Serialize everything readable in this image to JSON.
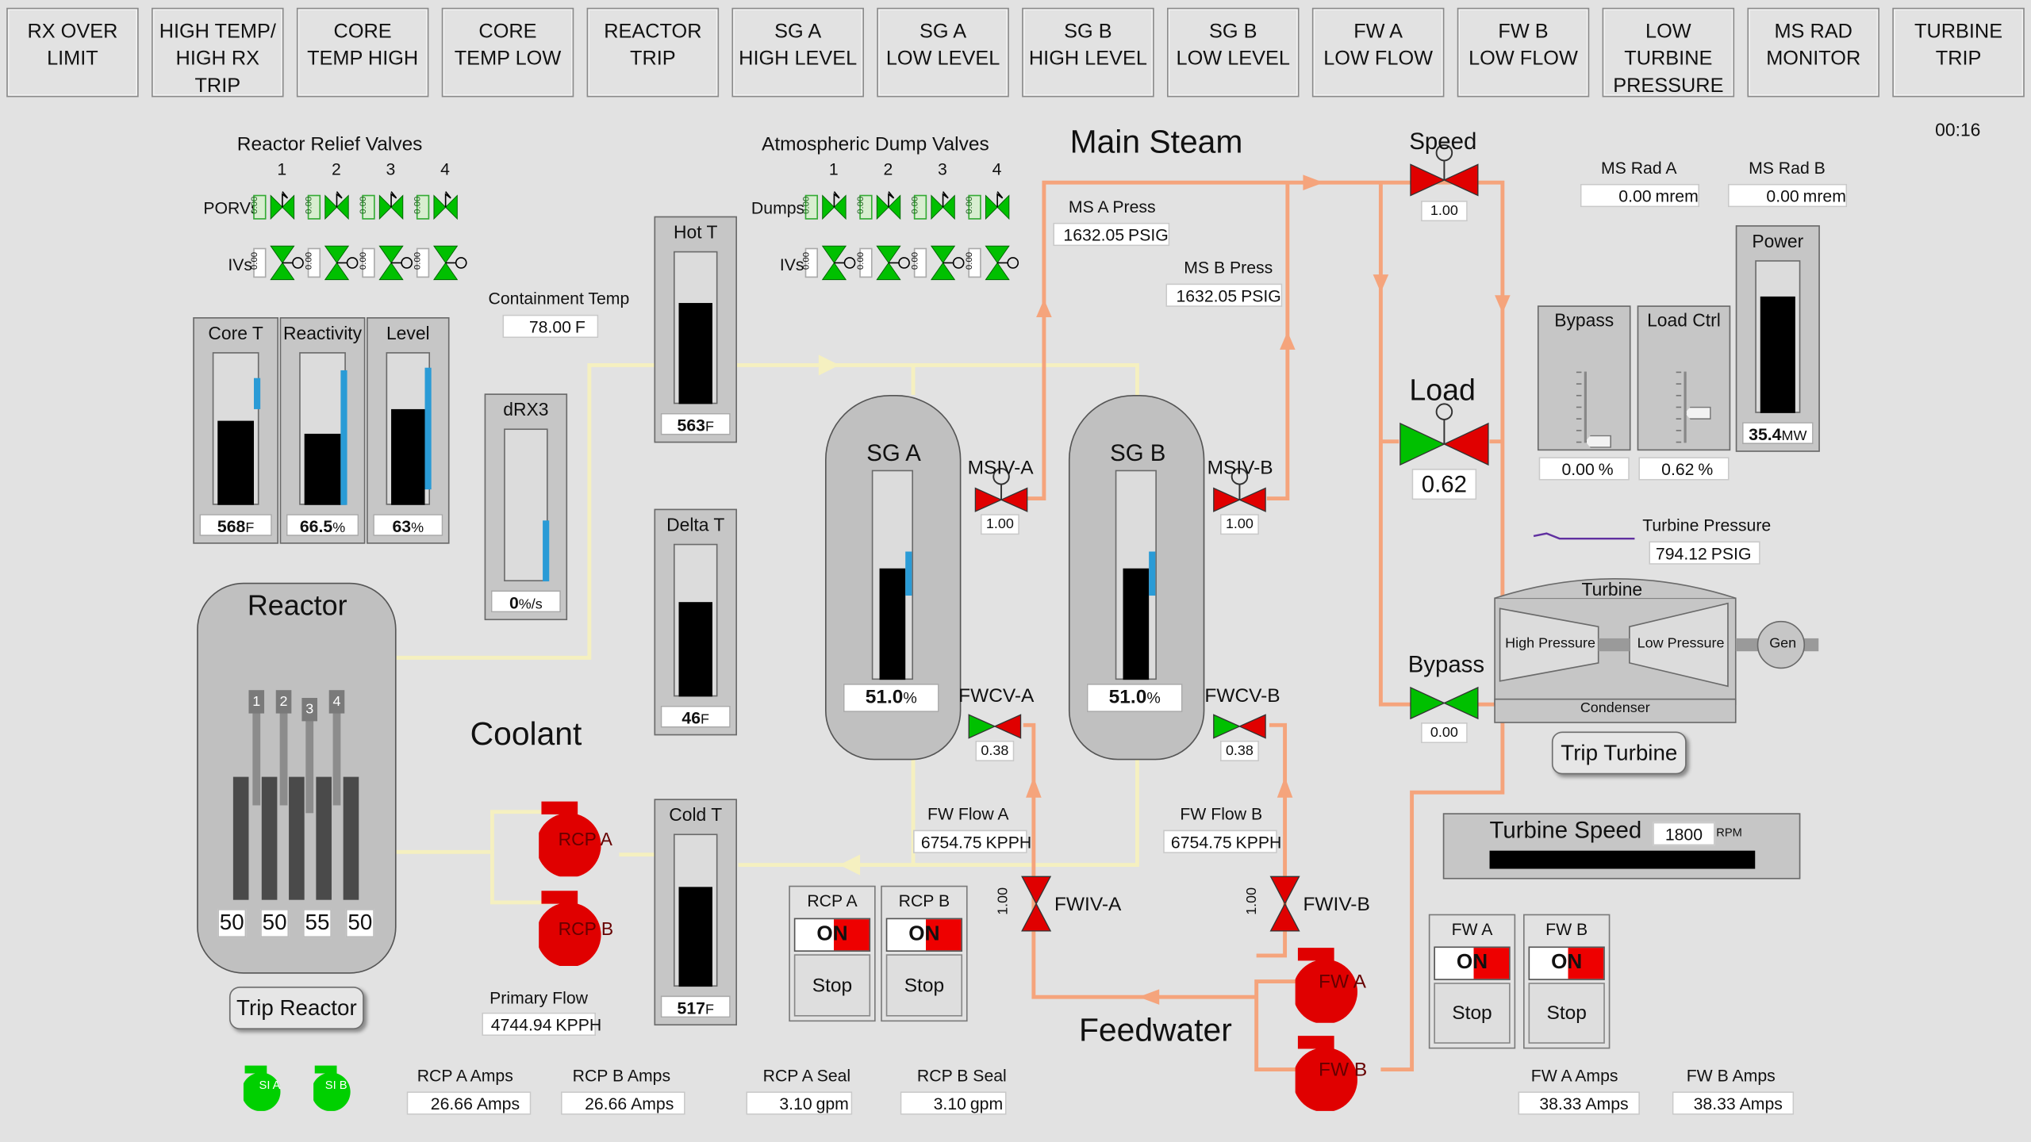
{
  "annunciators": [
    {
      "key": "rx_over_limit",
      "lines": [
        "RX OVER",
        "LIMIT"
      ]
    },
    {
      "key": "high_temp_high_rx_trip",
      "lines": [
        "HIGH TEMP/",
        "HIGH RX",
        "TRIP"
      ]
    },
    {
      "key": "core_temp_high",
      "lines": [
        "CORE",
        "TEMP HIGH"
      ]
    },
    {
      "key": "core_temp_low",
      "lines": [
        "CORE",
        "TEMP LOW"
      ]
    },
    {
      "key": "reactor_trip",
      "lines": [
        "REACTOR",
        "TRIP"
      ]
    },
    {
      "key": "sg_a_high_level",
      "lines": [
        "SG A",
        "HIGH LEVEL"
      ]
    },
    {
      "key": "sg_a_low_level",
      "lines": [
        "SG A",
        "LOW LEVEL"
      ]
    },
    {
      "key": "sg_b_high_level",
      "lines": [
        "SG B",
        "HIGH LEVEL"
      ]
    },
    {
      "key": "sg_b_low_level",
      "lines": [
        "SG B",
        "LOW LEVEL"
      ]
    },
    {
      "key": "fw_a_low_flow",
      "lines": [
        "FW A",
        "LOW FLOW"
      ]
    },
    {
      "key": "fw_b_low_flow",
      "lines": [
        "FW B",
        "LOW FLOW"
      ]
    },
    {
      "key": "low_turbine_pressure",
      "lines": [
        "LOW",
        "TURBINE",
        "PRESSURE"
      ]
    },
    {
      "key": "ms_rad_monitor",
      "lines": [
        "MS RAD",
        "MONITOR"
      ]
    },
    {
      "key": "turbine_trip",
      "lines": [
        "TURBINE",
        "TRIP"
      ]
    }
  ],
  "clock": "00:16",
  "section_titles": {
    "main_steam": "Main Steam",
    "coolant": "Coolant",
    "feedwater": "Feedwater",
    "reactor": "Reactor",
    "speed": "Speed",
    "load": "Load",
    "bypass": "Bypass"
  },
  "relief_valves": {
    "title": "Reactor Relief Valves",
    "numbers": [
      "1",
      "2",
      "3",
      "4"
    ],
    "porv_label": "PORVs",
    "iv_label": "IVs",
    "tags": [
      "0.00",
      "0.00",
      "0.00",
      "0.00"
    ]
  },
  "dump_valves": {
    "title": "Atmospheric Dump Valves",
    "numbers": [
      "1",
      "2",
      "3",
      "4"
    ],
    "dump_label": "Dumps",
    "iv_label": "IVs",
    "tags": [
      "0.00",
      "0.00",
      "0.00",
      "0.00"
    ]
  },
  "containment": {
    "label": "Containment Temp",
    "value": "78.00",
    "unit": "F"
  },
  "gauges": {
    "core_t": {
      "title": "Core T",
      "value": "568",
      "unit": "F",
      "fill": 0.55,
      "setpoint": [
        0.63,
        0.83
      ]
    },
    "reactivity": {
      "title": "Reactivity",
      "value": "66.5",
      "unit": "%",
      "fill": 0.47,
      "setpoint": [
        0.0,
        0.88
      ]
    },
    "level": {
      "title": "Level",
      "value": "63",
      "unit": "%",
      "fill": 0.63,
      "setpoint": [
        0.1,
        0.9
      ]
    },
    "drx3": {
      "title": "dRX3",
      "value": "0",
      "unit": "%/s",
      "fill": 0.0,
      "setpoint": [
        0.0,
        0.4
      ]
    },
    "hot_t": {
      "title": "Hot T",
      "value": "563",
      "unit": "F",
      "fill": 0.66
    },
    "delta_t": {
      "title": "Delta T",
      "value": "46",
      "unit": "F",
      "fill": 0.62
    },
    "cold_t": {
      "title": "Cold T",
      "value": "517",
      "unit": "F",
      "fill": 0.65
    },
    "power": {
      "title": "Power",
      "value": "35.4",
      "unit": "MW",
      "fill": 0.76
    }
  },
  "steam_generators": [
    {
      "key": "sg_a",
      "name": "SG A",
      "level": "51.0",
      "unit": "%",
      "fill": 0.51
    },
    {
      "key": "sg_b",
      "name": "SG B",
      "level": "51.0",
      "unit": "%",
      "fill": 0.51
    }
  ],
  "valves": {
    "msiv_a": {
      "label": "MSIV-A",
      "pos": "1.00"
    },
    "msiv_b": {
      "label": "MSIV-B",
      "pos": "1.00"
    },
    "fwcv_a": {
      "label": "FWCV-A",
      "pos": "0.38"
    },
    "fwcv_b": {
      "label": "FWCV-B",
      "pos": "0.38"
    },
    "fwiv_a": {
      "label": "FWIV-A",
      "pos": "1.00"
    },
    "fwiv_b": {
      "label": "FWIV-B",
      "pos": "1.00"
    },
    "speed": {
      "pos": "1.00"
    },
    "load": {
      "pos": "0.62"
    },
    "bypass": {
      "pos": "0.00"
    }
  },
  "readouts": {
    "ms_a_press": {
      "label": "MS A Press",
      "value": "1632.05",
      "unit": "PSIG"
    },
    "ms_b_press": {
      "label": "MS B Press",
      "value": "1632.05",
      "unit": "PSIG"
    },
    "fw_flow_a": {
      "label": "FW Flow A",
      "value": "6754.75",
      "unit": "KPPH"
    },
    "fw_flow_b": {
      "label": "FW Flow B",
      "value": "6754.75",
      "unit": "KPPH"
    },
    "primary_flow": {
      "label": "Primary Flow",
      "value": "4744.94",
      "unit": "KPPH"
    },
    "ms_rad_a": {
      "label": "MS Rad A",
      "value": "0.00",
      "unit": "mrem"
    },
    "ms_rad_b": {
      "label": "MS Rad B",
      "value": "0.00",
      "unit": "mrem"
    },
    "turbine_pressure": {
      "label": "Turbine Pressure",
      "value": "794.12",
      "unit": "PSIG"
    },
    "rcp_a_amps": {
      "label": "RCP A Amps",
      "value": "26.66",
      "unit": "Amps"
    },
    "rcp_b_amps": {
      "label": "RCP B Amps",
      "value": "26.66",
      "unit": "Amps"
    },
    "rcp_a_seal": {
      "label": "RCP A Seal",
      "value": "3.10",
      "unit": "gpm"
    },
    "rcp_b_seal": {
      "label": "RCP B Seal",
      "value": "3.10",
      "unit": "gpm"
    },
    "fw_a_amps": {
      "label": "FW A Amps",
      "value": "38.33",
      "unit": "Amps"
    },
    "fw_b_amps": {
      "label": "FW B Amps",
      "value": "38.33",
      "unit": "Amps"
    }
  },
  "sliders": {
    "bypass": {
      "title": "Bypass",
      "value": "0.00",
      "unit": "%",
      "level": 0.0
    },
    "load_ctrl": {
      "title": "Load Ctrl",
      "value": "0.62",
      "unit": "%",
      "level": 0.4
    }
  },
  "turbine": {
    "title": "Turbine",
    "hp": "High Pressure",
    "lp": "Low Pressure",
    "gen": "Gen",
    "condenser": "Condenser",
    "trip_label": "Trip Turbine"
  },
  "turbine_speed": {
    "label": "Turbine Speed",
    "value": "1800",
    "unit": "RPM"
  },
  "reactor": {
    "rods": [
      "1",
      "2",
      "3",
      "4"
    ],
    "rod_positions": [
      "50",
      "50",
      "55",
      "50"
    ],
    "trip_label": "Trip Reactor"
  },
  "pumps": {
    "rcp_a": {
      "label": "RCP A",
      "switch": "ON",
      "stop": "Stop"
    },
    "rcp_b": {
      "label": "RCP B",
      "switch": "ON",
      "stop": "Stop"
    },
    "fw_a": {
      "label": "FW A",
      "switch": "ON",
      "stop": "Stop"
    },
    "fw_b": {
      "label": "FW B",
      "switch": "ON",
      "stop": "Stop"
    }
  },
  "si_pumps": [
    "SI A",
    "SI B"
  ],
  "colors": {
    "steam": "#f5a47c",
    "coolant": "#f5f0c0",
    "valve_open": "#00c000",
    "valve_closed": "#e00000",
    "pump": "#e00000",
    "si": "#00d000",
    "setpoint": "#2a9bd6"
  }
}
